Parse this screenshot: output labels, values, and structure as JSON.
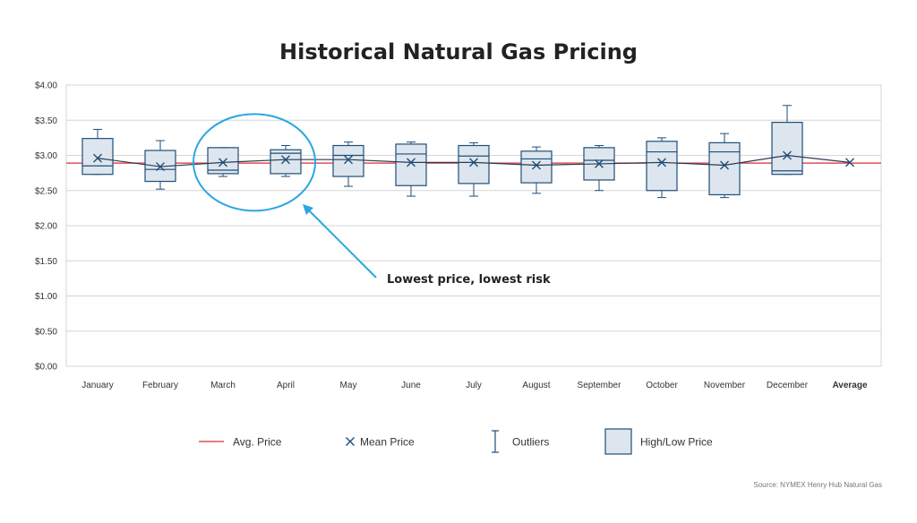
{
  "chart_data": {
    "type": "box",
    "title": "Historical Natural Gas Pricing",
    "ylim": [
      0,
      4
    ],
    "y_ticks": [
      "$0.00",
      "$0.50",
      "$1.00",
      "$1.50",
      "$2.00",
      "$2.50",
      "$3.00",
      "$3.50",
      "$4.00"
    ],
    "y_tick_values": [
      0,
      0.5,
      1,
      1.5,
      2,
      2.5,
      3,
      3.5,
      4
    ],
    "grid": true,
    "avg_price": 2.89,
    "categories": [
      "January",
      "February",
      "March",
      "April",
      "May",
      "June",
      "July",
      "August",
      "September",
      "October",
      "November",
      "December",
      "Average"
    ],
    "boxes": [
      {
        "month": "January",
        "low": 2.73,
        "q1": 2.73,
        "median": 2.85,
        "q3": 3.24,
        "high": 3.37,
        "mean": 2.96
      },
      {
        "month": "February",
        "low": 2.52,
        "q1": 2.63,
        "median": 2.8,
        "q3": 3.07,
        "high": 3.21,
        "mean": 2.84
      },
      {
        "month": "March",
        "low": 2.7,
        "q1": 2.74,
        "median": 2.79,
        "q3": 3.11,
        "high": 3.11,
        "mean": 2.9
      },
      {
        "month": "April",
        "low": 2.7,
        "q1": 2.74,
        "median": 3.03,
        "q3": 3.08,
        "high": 3.14,
        "mean": 2.94
      },
      {
        "month": "May",
        "low": 2.56,
        "q1": 2.7,
        "median": 3.0,
        "q3": 3.14,
        "high": 3.19,
        "mean": 2.94
      },
      {
        "month": "June",
        "low": 2.42,
        "q1": 2.57,
        "median": 3.02,
        "q3": 3.16,
        "high": 3.19,
        "mean": 2.9
      },
      {
        "month": "July",
        "low": 2.42,
        "q1": 2.6,
        "median": 2.99,
        "q3": 3.14,
        "high": 3.18,
        "mean": 2.9
      },
      {
        "month": "August",
        "low": 2.46,
        "q1": 2.61,
        "median": 2.95,
        "q3": 3.06,
        "high": 3.12,
        "mean": 2.86
      },
      {
        "month": "September",
        "low": 2.5,
        "q1": 2.65,
        "median": 2.93,
        "q3": 3.11,
        "high": 3.14,
        "mean": 2.88
      },
      {
        "month": "October",
        "low": 2.4,
        "q1": 2.5,
        "median": 3.05,
        "q3": 3.2,
        "high": 3.25,
        "mean": 2.9
      },
      {
        "month": "November",
        "low": 2.4,
        "q1": 2.44,
        "median": 3.05,
        "q3": 3.18,
        "high": 3.31,
        "mean": 2.86
      },
      {
        "month": "December",
        "low": 2.73,
        "q1": 2.73,
        "median": 2.78,
        "q3": 3.47,
        "high": 3.71,
        "mean": 3.0
      }
    ],
    "average_mean": 2.9,
    "annotation": "Lowest price, lowest risk",
    "highlighted_months": [
      "March",
      "April"
    ],
    "colors": {
      "box_fill": "#dde6ee",
      "box_stroke": "#1f4e79",
      "avg_line": "#e05050",
      "highlight": "#2aa7df",
      "grid": "#d6d6d6"
    },
    "legend": [
      {
        "key": "avg",
        "label": "Avg. Price"
      },
      {
        "key": "mean",
        "label": "Mean Price"
      },
      {
        "key": "outliers",
        "label": "Outliers"
      },
      {
        "key": "highlow",
        "label": "High/Low Price"
      }
    ],
    "source": "Source: NYMEX Henry Hub Natural Gas"
  }
}
